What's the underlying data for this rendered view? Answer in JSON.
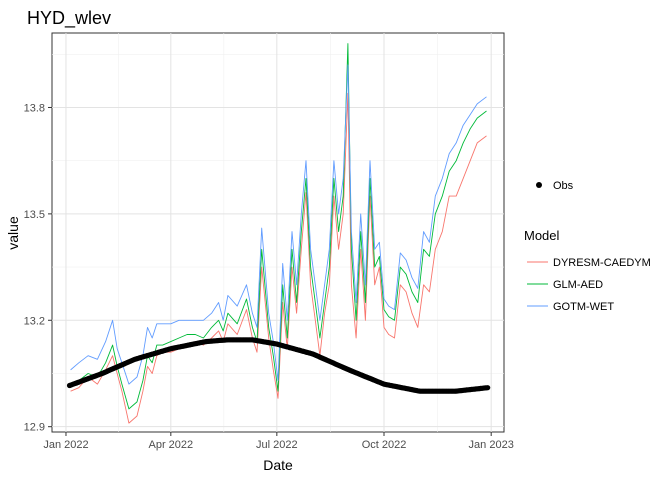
{
  "chart_data": {
    "type": "line",
    "title": "HYD_wlev",
    "xlabel": "Date",
    "ylabel": "value",
    "x_type": "date",
    "xlim": [
      "2021-12-20",
      "2023-01-12"
    ],
    "ylim": [
      12.885,
      14.01
    ],
    "x_ticks": [
      {
        "value": "2022-01-01",
        "label": "Jan 2022"
      },
      {
        "value": "2022-04-01",
        "label": "Apr 2022"
      },
      {
        "value": "2022-07-01",
        "label": "Jul 2022"
      },
      {
        "value": "2022-10-01",
        "label": "Oct 2022"
      },
      {
        "value": "2023-01-01",
        "label": "Jan 2023"
      }
    ],
    "y_ticks": [
      12.9,
      13.2,
      13.5,
      13.8
    ],
    "grid": true,
    "legend_position": "right",
    "legend_obs_label": "Obs",
    "legend_title": "Model",
    "series": [
      {
        "name": "Obs",
        "style": "points",
        "color": "#000000",
        "x": [
          "2022-01-04",
          "2022-02-01",
          "2022-03-01",
          "2022-04-01",
          "2022-05-01",
          "2022-05-20",
          "2022-06-10",
          "2022-07-01",
          "2022-08-01",
          "2022-09-01",
          "2022-10-01",
          "2022-11-01",
          "2022-12-01",
          "2022-12-29"
        ],
        "values": [
          13.016,
          13.05,
          13.09,
          13.12,
          13.14,
          13.145,
          13.145,
          13.133,
          13.105,
          13.06,
          13.02,
          13.0,
          13.0,
          13.01
        ]
      },
      {
        "name": "DYRESM-CAEDYM",
        "style": "line",
        "color": "#F8766D",
        "x": [
          "2022-01-05",
          "2022-01-12",
          "2022-01-20",
          "2022-01-28",
          "2022-02-04",
          "2022-02-10",
          "2022-02-14",
          "2022-02-18",
          "2022-02-24",
          "2022-03-03",
          "2022-03-08",
          "2022-03-12",
          "2022-03-16",
          "2022-03-20",
          "2022-03-25",
          "2022-04-01",
          "2022-04-08",
          "2022-04-15",
          "2022-04-22",
          "2022-04-29",
          "2022-05-06",
          "2022-05-12",
          "2022-05-16",
          "2022-05-20",
          "2022-05-28",
          "2022-06-05",
          "2022-06-10",
          "2022-06-14",
          "2022-06-18",
          "2022-06-24",
          "2022-06-28",
          "2022-07-02",
          "2022-07-06",
          "2022-07-10",
          "2022-07-14",
          "2022-07-18",
          "2022-07-22",
          "2022-07-26",
          "2022-07-30",
          "2022-08-03",
          "2022-08-07",
          "2022-08-11",
          "2022-08-15",
          "2022-08-19",
          "2022-08-23",
          "2022-08-27",
          "2022-08-31",
          "2022-09-03",
          "2022-09-07",
          "2022-09-11",
          "2022-09-15",
          "2022-09-19",
          "2022-09-23",
          "2022-09-27",
          "2022-10-01",
          "2022-10-05",
          "2022-10-10",
          "2022-10-15",
          "2022-10-20",
          "2022-10-25",
          "2022-10-30",
          "2022-11-04",
          "2022-11-09",
          "2022-11-14",
          "2022-11-20",
          "2022-11-26",
          "2022-12-02",
          "2022-12-08",
          "2022-12-14",
          "2022-12-20",
          "2022-12-28"
        ],
        "values": [
          13.0,
          13.01,
          13.04,
          13.02,
          13.06,
          13.1,
          13.05,
          13.0,
          12.91,
          12.93,
          13.0,
          13.07,
          13.05,
          13.1,
          13.11,
          13.11,
          13.12,
          13.13,
          13.14,
          13.13,
          13.15,
          13.17,
          13.14,
          13.19,
          13.16,
          13.23,
          13.15,
          13.11,
          13.35,
          13.15,
          13.06,
          12.98,
          13.25,
          13.12,
          13.35,
          13.22,
          13.4,
          13.56,
          13.3,
          13.2,
          13.1,
          13.22,
          13.3,
          13.55,
          13.4,
          13.5,
          13.84,
          13.3,
          13.15,
          13.4,
          13.2,
          13.55,
          13.3,
          13.35,
          13.18,
          13.16,
          13.15,
          13.3,
          13.28,
          13.22,
          13.18,
          13.3,
          13.28,
          13.4,
          13.45,
          13.55,
          13.55,
          13.6,
          13.65,
          13.7,
          13.72
        ]
      },
      {
        "name": "GLM-AED",
        "style": "line",
        "color": "#00BA38",
        "x": [
          "2022-01-05",
          "2022-01-12",
          "2022-01-20",
          "2022-01-28",
          "2022-02-04",
          "2022-02-10",
          "2022-02-14",
          "2022-02-18",
          "2022-02-24",
          "2022-03-03",
          "2022-03-08",
          "2022-03-12",
          "2022-03-16",
          "2022-03-20",
          "2022-03-25",
          "2022-04-01",
          "2022-04-08",
          "2022-04-15",
          "2022-04-22",
          "2022-04-29",
          "2022-05-06",
          "2022-05-12",
          "2022-05-16",
          "2022-05-20",
          "2022-05-28",
          "2022-06-05",
          "2022-06-10",
          "2022-06-14",
          "2022-06-18",
          "2022-06-24",
          "2022-06-28",
          "2022-07-02",
          "2022-07-06",
          "2022-07-10",
          "2022-07-14",
          "2022-07-18",
          "2022-07-22",
          "2022-07-26",
          "2022-07-30",
          "2022-08-03",
          "2022-08-07",
          "2022-08-11",
          "2022-08-15",
          "2022-08-19",
          "2022-08-23",
          "2022-08-27",
          "2022-08-31",
          "2022-09-03",
          "2022-09-07",
          "2022-09-11",
          "2022-09-15",
          "2022-09-19",
          "2022-09-23",
          "2022-09-27",
          "2022-10-01",
          "2022-10-05",
          "2022-10-10",
          "2022-10-15",
          "2022-10-20",
          "2022-10-25",
          "2022-10-30",
          "2022-11-04",
          "2022-11-09",
          "2022-11-14",
          "2022-11-20",
          "2022-11-26",
          "2022-12-02",
          "2022-12-08",
          "2022-12-14",
          "2022-12-20",
          "2022-12-28"
        ],
        "values": [
          13.02,
          13.03,
          13.05,
          13.04,
          13.08,
          13.13,
          13.07,
          13.02,
          12.95,
          12.97,
          13.03,
          13.1,
          13.08,
          13.13,
          13.13,
          13.14,
          13.15,
          13.16,
          13.16,
          13.15,
          13.18,
          13.2,
          13.17,
          13.22,
          13.19,
          13.26,
          13.18,
          13.14,
          13.4,
          13.18,
          13.1,
          13.0,
          13.3,
          13.15,
          13.4,
          13.25,
          13.45,
          13.6,
          13.35,
          13.25,
          13.15,
          13.25,
          13.35,
          13.6,
          13.45,
          13.55,
          13.98,
          13.4,
          13.2,
          13.45,
          13.25,
          13.6,
          13.35,
          13.38,
          13.23,
          13.21,
          13.2,
          13.35,
          13.33,
          13.28,
          13.25,
          13.4,
          13.38,
          13.5,
          13.55,
          13.62,
          13.65,
          13.7,
          13.74,
          13.77,
          13.79
        ]
      },
      {
        "name": "GOTM-WET",
        "style": "line",
        "color": "#619CFF",
        "x": [
          "2022-01-05",
          "2022-01-12",
          "2022-01-20",
          "2022-01-28",
          "2022-02-04",
          "2022-02-10",
          "2022-02-14",
          "2022-02-18",
          "2022-02-24",
          "2022-03-03",
          "2022-03-08",
          "2022-03-12",
          "2022-03-16",
          "2022-03-20",
          "2022-03-25",
          "2022-04-01",
          "2022-04-08",
          "2022-04-15",
          "2022-04-22",
          "2022-04-29",
          "2022-05-06",
          "2022-05-12",
          "2022-05-16",
          "2022-05-20",
          "2022-05-28",
          "2022-06-05",
          "2022-06-10",
          "2022-06-14",
          "2022-06-18",
          "2022-06-24",
          "2022-06-28",
          "2022-07-02",
          "2022-07-06",
          "2022-07-10",
          "2022-07-14",
          "2022-07-18",
          "2022-07-22",
          "2022-07-26",
          "2022-07-30",
          "2022-08-03",
          "2022-08-07",
          "2022-08-11",
          "2022-08-15",
          "2022-08-19",
          "2022-08-23",
          "2022-08-27",
          "2022-08-31",
          "2022-09-03",
          "2022-09-07",
          "2022-09-11",
          "2022-09-15",
          "2022-09-19",
          "2022-09-23",
          "2022-09-27",
          "2022-10-01",
          "2022-10-05",
          "2022-10-10",
          "2022-10-15",
          "2022-10-20",
          "2022-10-25",
          "2022-10-30",
          "2022-11-04",
          "2022-11-09",
          "2022-11-14",
          "2022-11-20",
          "2022-11-26",
          "2022-12-02",
          "2022-12-08",
          "2022-12-14",
          "2022-12-20",
          "2022-12-28"
        ],
        "values": [
          13.06,
          13.08,
          13.1,
          13.09,
          13.14,
          13.2,
          13.12,
          13.08,
          13.02,
          13.04,
          13.1,
          13.18,
          13.15,
          13.19,
          13.19,
          13.19,
          13.2,
          13.2,
          13.2,
          13.2,
          13.22,
          13.25,
          13.2,
          13.27,
          13.24,
          13.3,
          13.22,
          13.18,
          13.46,
          13.22,
          13.14,
          13.03,
          13.36,
          13.2,
          13.45,
          13.3,
          13.5,
          13.65,
          13.4,
          13.3,
          13.2,
          13.3,
          13.4,
          13.65,
          13.5,
          13.6,
          13.92,
          13.45,
          13.25,
          13.5,
          13.3,
          13.65,
          13.4,
          13.42,
          13.26,
          13.24,
          13.23,
          13.39,
          13.37,
          13.32,
          13.29,
          13.45,
          13.42,
          13.55,
          13.6,
          13.67,
          13.7,
          13.75,
          13.78,
          13.81,
          13.83
        ]
      }
    ]
  }
}
